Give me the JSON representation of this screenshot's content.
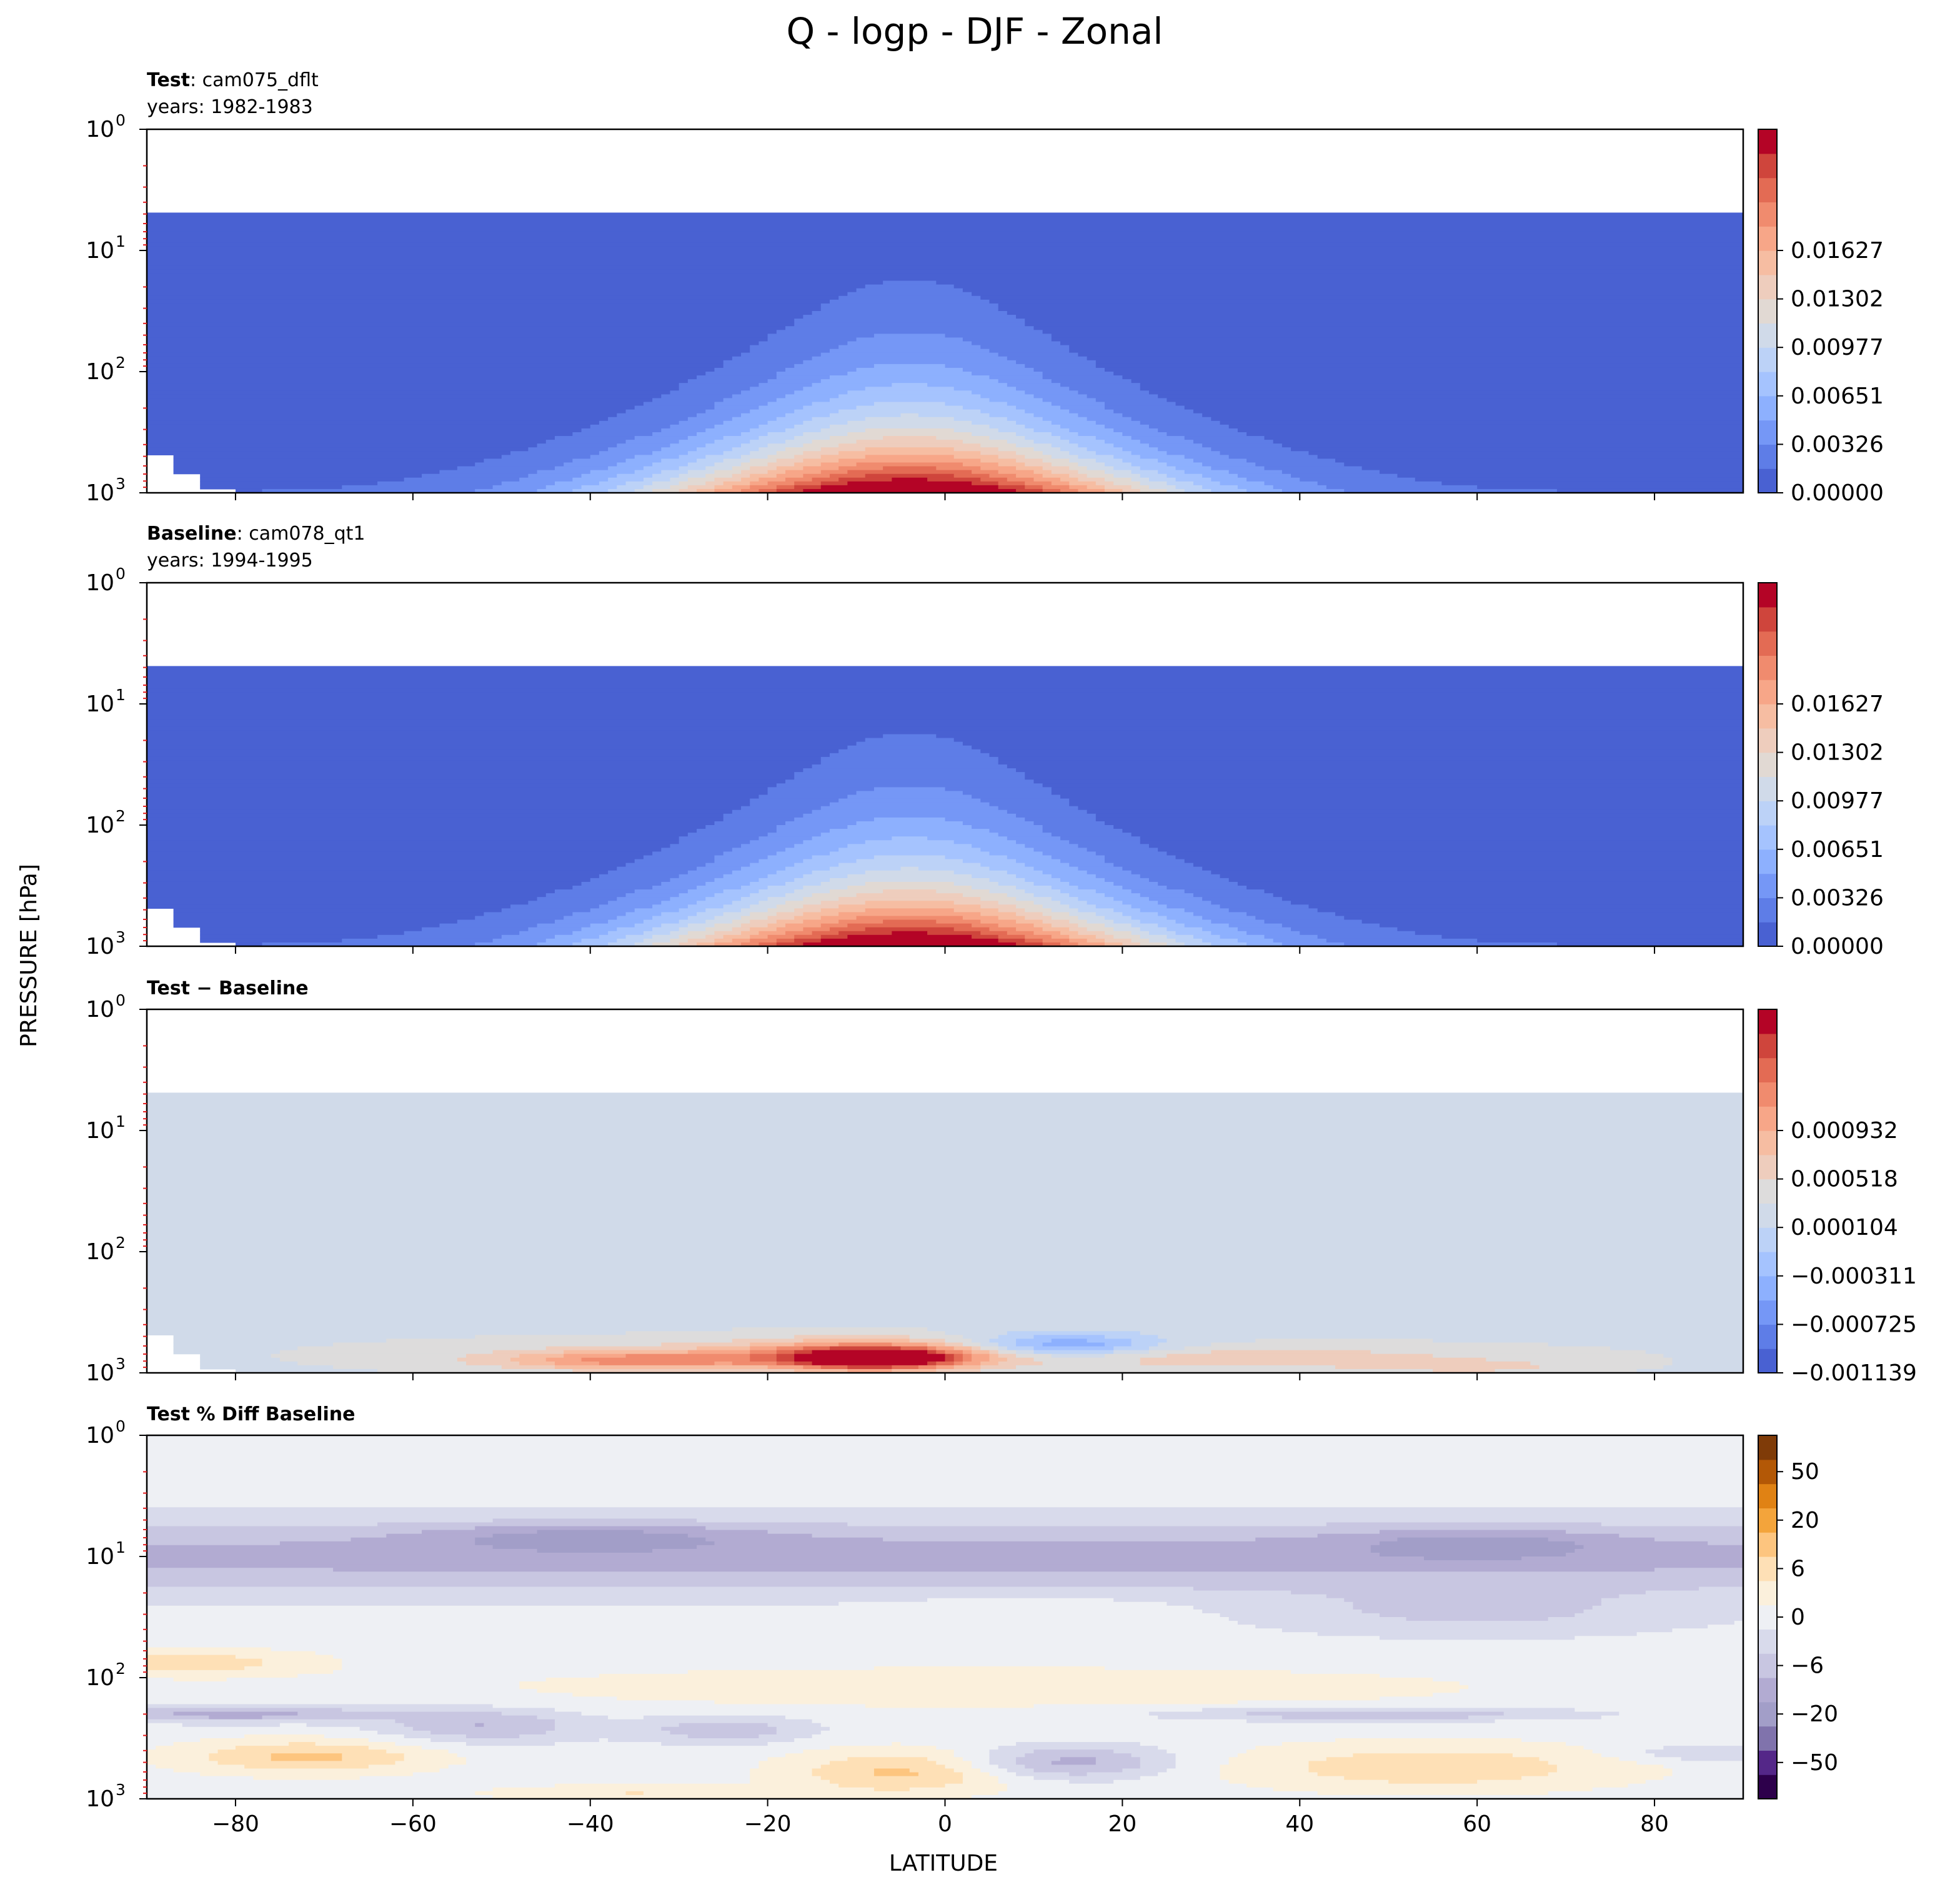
{
  "figure": {
    "suptitle": "Q - logp - DJF - Zonal",
    "xlabel": "LATITUDE",
    "ylabel": "PRESSURE [hPa]"
  },
  "chart_data": [
    {
      "type": "heatmap",
      "id": "test",
      "title_bold": "Test",
      "title_rest": ": cam075_dflt",
      "subtitle": "years: 1982-1983",
      "xlim": [
        -90,
        90
      ],
      "ylim": [
        1000,
        1
      ],
      "yscale": "log",
      "x_ticks": [
        -80,
        -60,
        -40,
        -20,
        0,
        20,
        40,
        60,
        80
      ],
      "y_ticks": [
        1,
        10,
        100,
        1000
      ],
      "colorbar": {
        "ticks": [
          "0.01627",
          "0.01302",
          "0.00977",
          "0.00651",
          "0.00326",
          "0.00000"
        ],
        "range": [
          0,
          0.0179
        ],
        "colors": [
          "#4961d2",
          "#5e7de7",
          "#7597f6",
          "#8db0fe",
          "#a5c3fe",
          "#bcd2f7",
          "#d0dae9",
          "#e1d9d3",
          "#eecdbd",
          "#f6bda2",
          "#f7a688",
          "#f08b6e",
          "#e36b54",
          "#cf453c",
          "#b40426"
        ]
      },
      "annotations": {
        "model_top_hPa": 5,
        "max_q_latitude": -5
      }
    },
    {
      "type": "heatmap",
      "id": "baseline",
      "title_bold": "Baseline",
      "title_rest": ": cam078_qt1",
      "subtitle": "years: 1994-1995",
      "xlim": [
        -90,
        90
      ],
      "ylim": [
        1000,
        1
      ],
      "yscale": "log",
      "x_ticks": [
        -80,
        -60,
        -40,
        -20,
        0,
        20,
        40,
        60,
        80
      ],
      "y_ticks": [
        1,
        10,
        100,
        1000
      ],
      "colorbar": {
        "ticks": [
          "0.01627",
          "0.01302",
          "0.00977",
          "0.00651",
          "0.00326",
          "0.00000"
        ],
        "range": [
          0,
          0.0179
        ],
        "colors": [
          "#4961d2",
          "#5e7de7",
          "#7597f6",
          "#8db0fe",
          "#a5c3fe",
          "#bcd2f7",
          "#d0dae9",
          "#e1d9d3",
          "#eecdbd",
          "#f6bda2",
          "#f7a688",
          "#f08b6e",
          "#e36b54",
          "#cf453c",
          "#b40426"
        ]
      }
    },
    {
      "type": "heatmap",
      "id": "diff",
      "title_bold": "Test − Baseline",
      "title_rest": "",
      "subtitle": "",
      "xlim": [
        -90,
        90
      ],
      "ylim": [
        1000,
        1
      ],
      "yscale": "log",
      "x_ticks": [
        -80,
        -60,
        -40,
        -20,
        0,
        20,
        40,
        60,
        80
      ],
      "y_ticks": [
        1,
        10,
        100,
        1000
      ],
      "colorbar": {
        "ticks": [
          "0.000932",
          "0.000518",
          "0.000104",
          "−0.000311",
          "−0.000725",
          "−0.001139"
        ],
        "range": [
          -0.001139,
          0.001346
        ],
        "colors": [
          "#4961d2",
          "#5e7de7",
          "#7597f6",
          "#8db0fe",
          "#a5c3fe",
          "#bcd2f7",
          "#d0dae9",
          "#dddcdc",
          "#eecdbd",
          "#f6bda2",
          "#f7a688",
          "#f08b6e",
          "#e36b54",
          "#cf453c",
          "#b40426"
        ]
      }
    },
    {
      "type": "heatmap",
      "id": "pctdiff",
      "title_bold": "Test % Diff Baseline",
      "title_rest": "",
      "subtitle": "",
      "xlim": [
        -90,
        90
      ],
      "ylim": [
        1000,
        1
      ],
      "yscale": "log",
      "x_ticks": [
        -80,
        -60,
        -40,
        -20,
        0,
        20,
        40,
        60,
        80
      ],
      "y_ticks": [
        1,
        10,
        100,
        1000
      ],
      "colorbar": {
        "ticks": [
          "50",
          "20",
          "6",
          "0",
          "−6",
          "−20",
          "−50"
        ],
        "range": [
          -100,
          100
        ],
        "colors": [
          "#2d004b",
          "#542788",
          "#8073ac",
          "#a29ec8",
          "#b2abd2",
          "#c8c6e1",
          "#d8daeb",
          "#eef0f4",
          "#fbf0dc",
          "#fee0b6",
          "#fdc57f",
          "#f3a43b",
          "#e08214",
          "#b35806",
          "#7f3b08"
        ]
      }
    }
  ]
}
